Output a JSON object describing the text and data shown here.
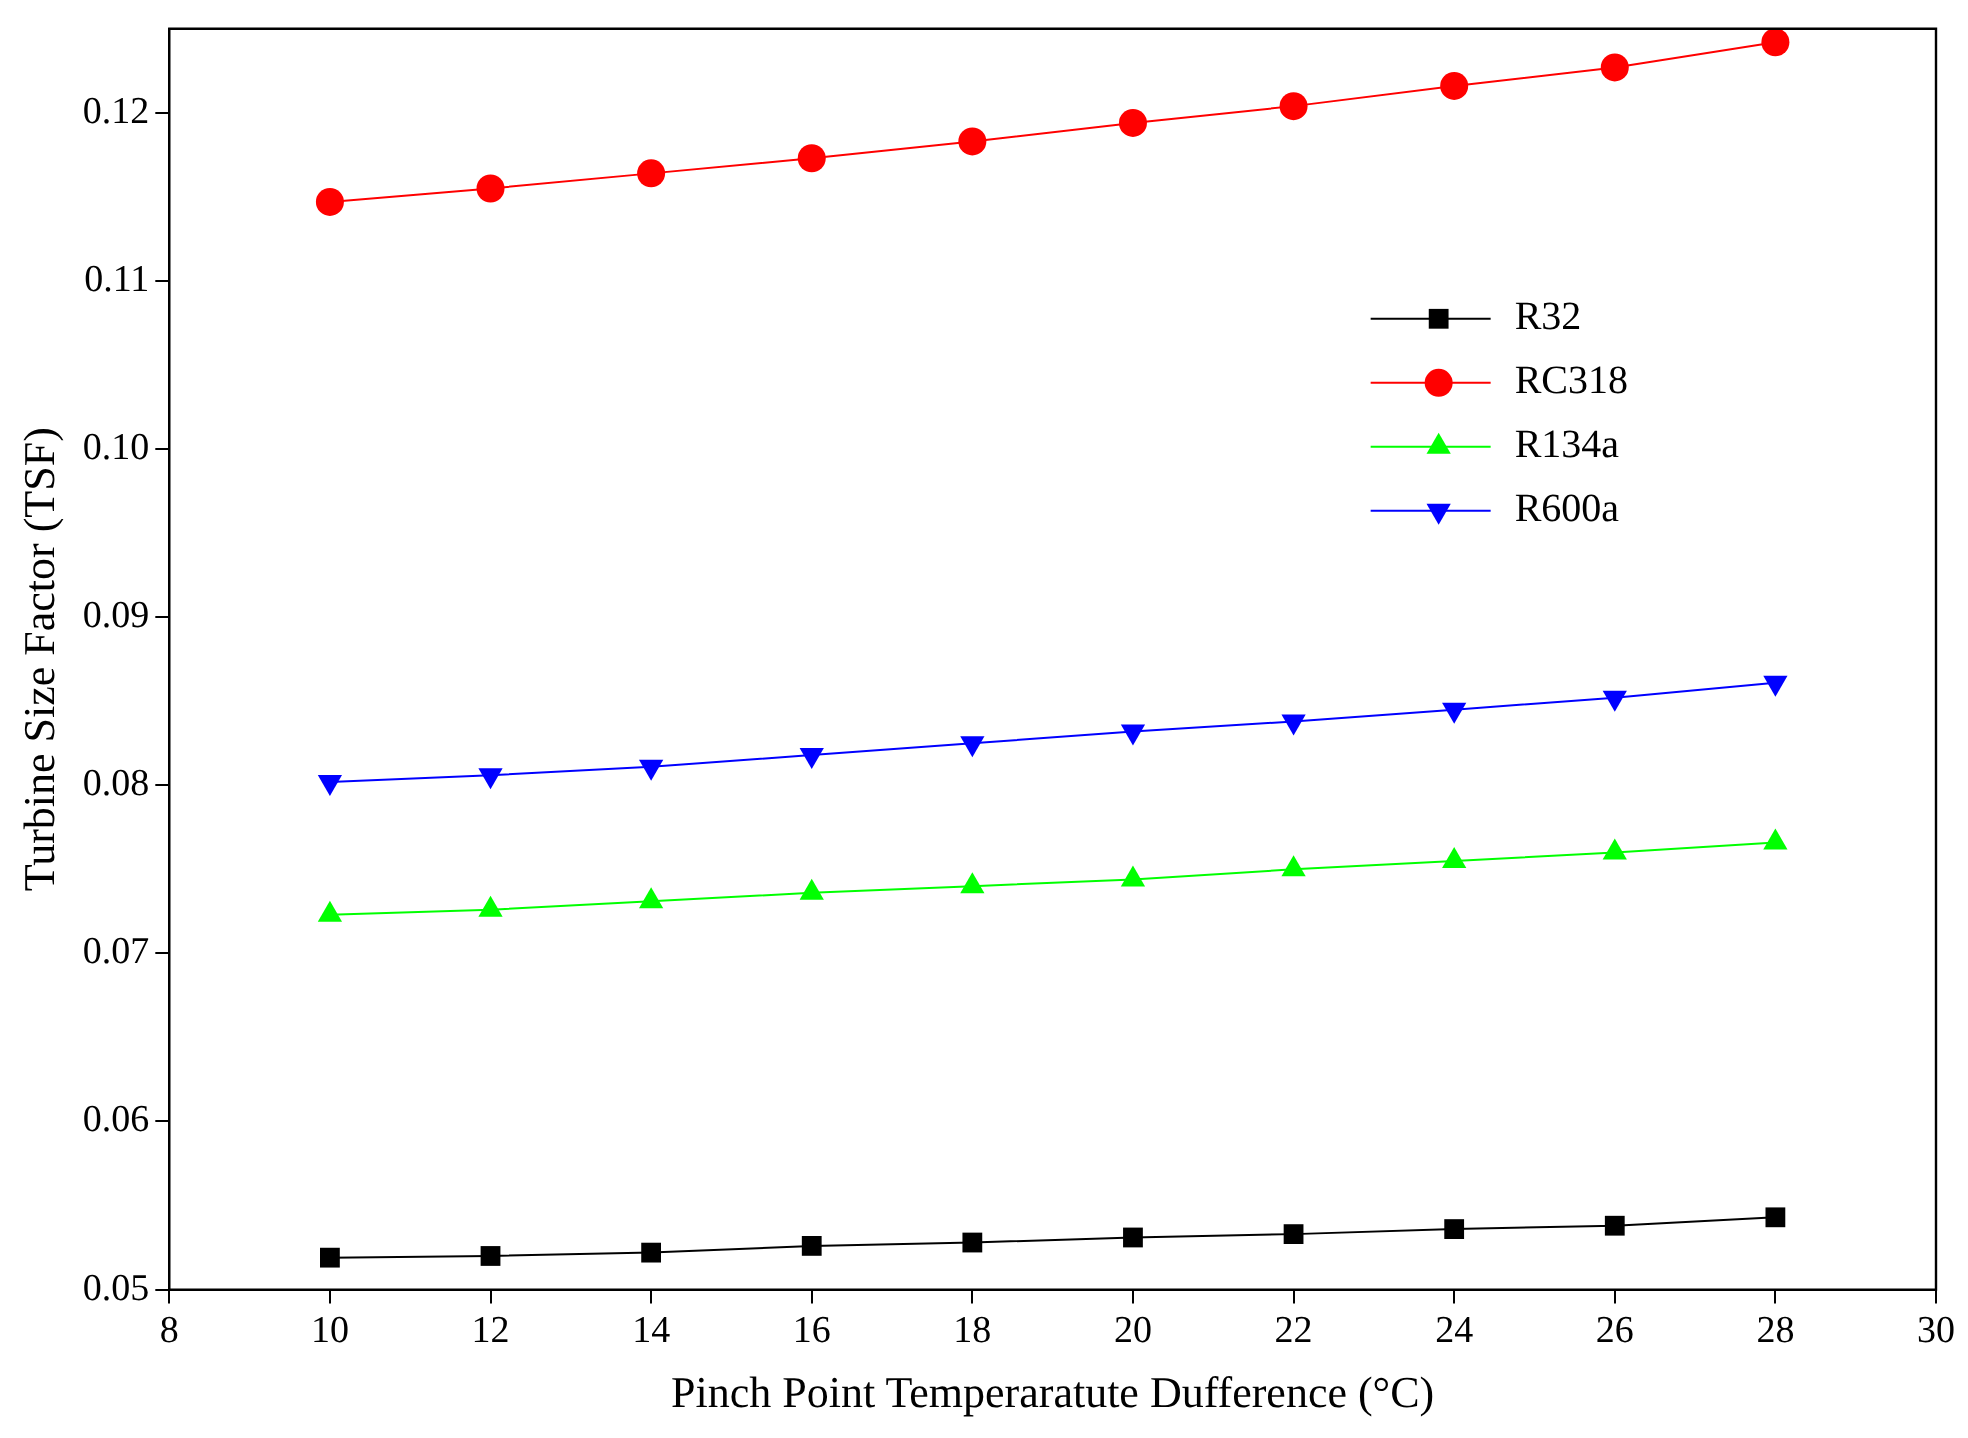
{
  "chart_data": {
    "type": "line",
    "xlabel": "Pinch Point Temperaratute Dufference (°C)",
    "ylabel": "Turbine Size Factor (TSF)",
    "x": [
      10,
      12,
      14,
      16,
      18,
      20,
      22,
      24,
      26,
      28
    ],
    "series": [
      {
        "name": "R32",
        "color": "#000000",
        "marker": "square",
        "values": [
          0.0519,
          0.052,
          0.0522,
          0.0526,
          0.0528,
          0.0531,
          0.0533,
          0.0536,
          0.0538,
          0.0543
        ]
      },
      {
        "name": "RC318",
        "color": "#ff0000",
        "marker": "circle",
        "values": [
          0.1147,
          0.1155,
          0.1164,
          0.1173,
          0.1183,
          0.1194,
          0.1204,
          0.1216,
          0.1227,
          0.1242
        ]
      },
      {
        "name": "R134a",
        "color": "#00ff00",
        "marker": "triangle",
        "values": [
          0.0723,
          0.0726,
          0.0731,
          0.0736,
          0.074,
          0.0744,
          0.075,
          0.0755,
          0.076,
          0.0766
        ]
      },
      {
        "name": "R600a",
        "color": "#0000ff",
        "marker": "triangle-down",
        "values": [
          0.0802,
          0.0806,
          0.0811,
          0.0818,
          0.0825,
          0.0832,
          0.0838,
          0.0845,
          0.0852,
          0.0861
        ]
      }
    ],
    "xlim": [
      8,
      30
    ],
    "xticks": [
      8,
      10,
      12,
      14,
      16,
      18,
      20,
      22,
      24,
      26,
      28,
      30
    ],
    "ylim": [
      0.05,
      0.125
    ],
    "yticks": [
      {
        "value": 0.05,
        "label": "0.05"
      },
      {
        "value": 0.06,
        "label": "0.06"
      },
      {
        "value": 0.07,
        "label": "0.07"
      },
      {
        "value": 0.08,
        "label": "0.08"
      },
      {
        "value": 0.09,
        "label": "0.09"
      },
      {
        "value": 0.1,
        "label": "0.10"
      },
      {
        "value": 0.11,
        "label": "0.11"
      },
      {
        "value": 0.12,
        "label": "0.12"
      }
    ],
    "grid": false,
    "legend": "right",
    "line_style": "solid"
  }
}
